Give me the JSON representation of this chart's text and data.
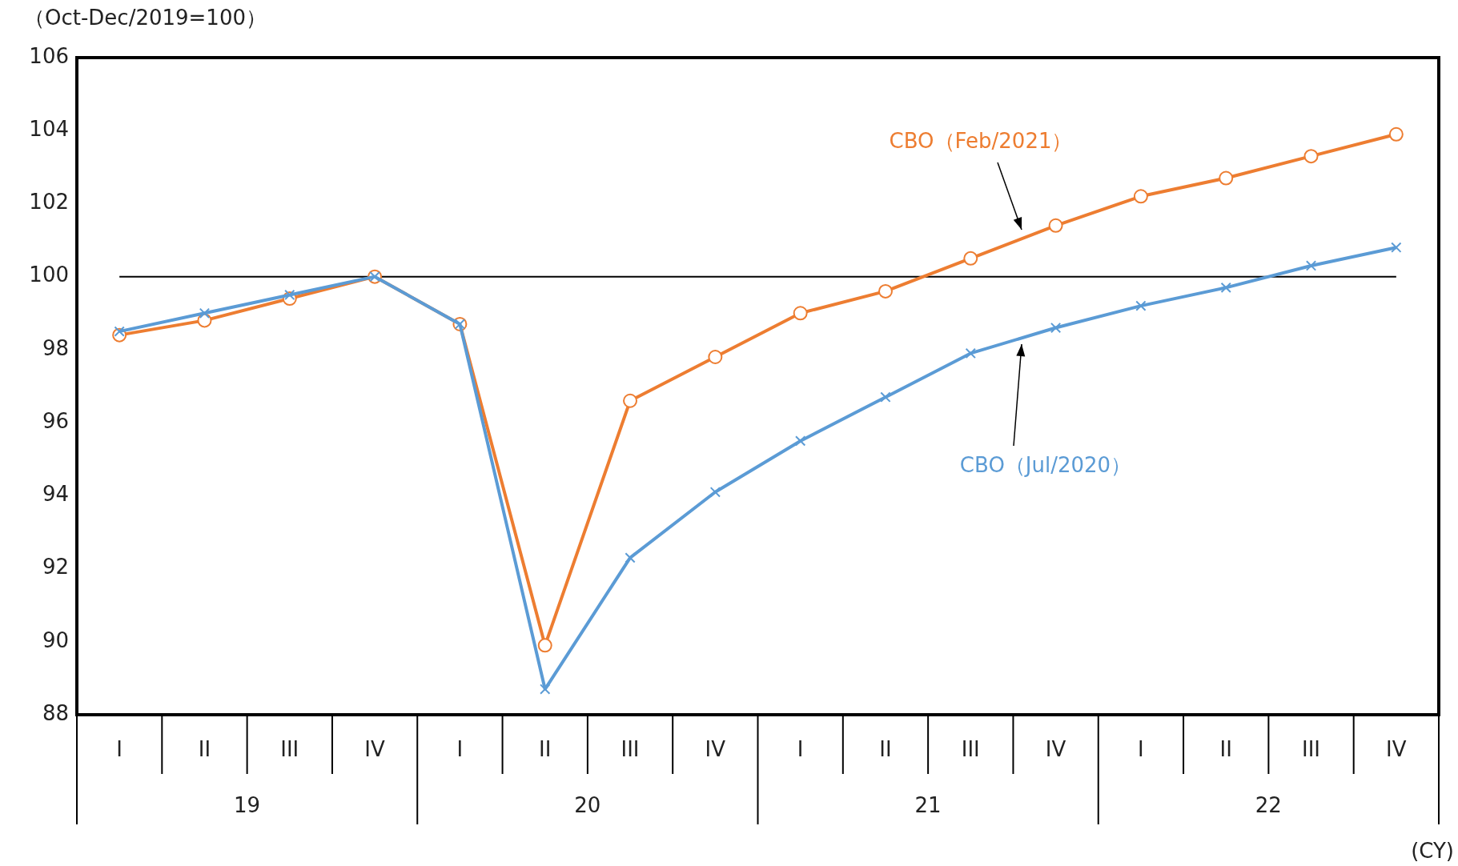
{
  "chart_data": {
    "type": "line",
    "ylabel": "（Oct-Dec/2019=100）",
    "categories": [
      "I",
      "II",
      "III",
      "IV",
      "I",
      "II",
      "III",
      "IV",
      "I",
      "II",
      "III",
      "IV",
      "I",
      "II",
      "III",
      "IV"
    ],
    "series": [
      {
        "name": "CBO（Feb/2021）",
        "color": "#ed7d31",
        "marker": "circle",
        "values": [
          98.4,
          98.8,
          99.4,
          100.0,
          98.7,
          89.9,
          96.6,
          97.8,
          99.0,
          99.6,
          100.5,
          101.4,
          102.2,
          102.7,
          103.3,
          103.9
        ]
      },
      {
        "name": "CBO（Jul/2020）",
        "color": "#5b9bd5",
        "marker": "cross",
        "values": [
          98.5,
          99.0,
          99.5,
          100.0,
          98.7,
          88.7,
          92.3,
          94.1,
          95.5,
          96.7,
          97.9,
          98.6,
          99.2,
          99.7,
          100.3,
          100.8
        ]
      }
    ],
    "ylim": [
      88,
      106
    ],
    "yticks": [
      88,
      90,
      92,
      94,
      96,
      98,
      100,
      102,
      104,
      106
    ],
    "ref_lines": [
      {
        "axis": "y",
        "value": 100,
        "color": "#000000"
      }
    ],
    "annotations": [
      "19",
      "20",
      "21",
      "22",
      "(CY)"
    ],
    "grid": false,
    "legend": false
  }
}
